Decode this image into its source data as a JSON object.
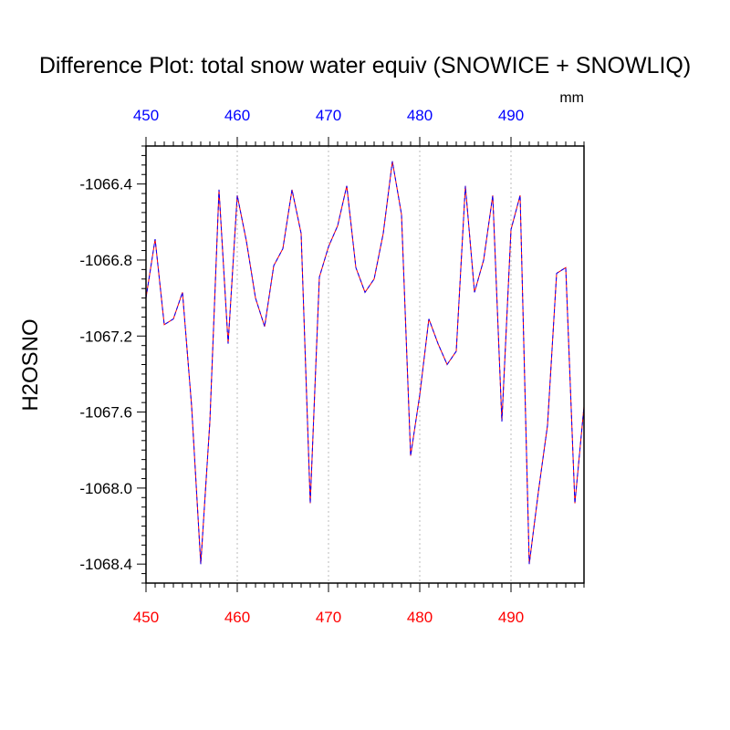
{
  "chart_data": {
    "type": "line",
    "title": "Difference Plot: total snow water equiv (SNOWICE + SNOWLIQ)",
    "units": "mm",
    "ylabel": "H2OSNO",
    "xlim": [
      450,
      498
    ],
    "ylim": [
      -1068.5,
      -1066.2
    ],
    "x_ticks": [
      450,
      460,
      470,
      480,
      490
    ],
    "y_ticks": [
      -1066.4,
      -1066.8,
      -1067.2,
      -1067.6,
      -1068.0,
      -1068.4
    ],
    "y_tick_labels": [
      "-1066.4",
      "-1066.8",
      "-1067.2",
      "-1067.6",
      "-1068.0",
      "-1068.4"
    ],
    "top_axis_color": "#0000ff",
    "bottom_axis_color": "#ff0000",
    "grid": "vertical dotted at major x ticks",
    "series": [
      {
        "color_a": "#ff0000",
        "color_b": "#0000ff",
        "x": [
          450,
          451,
          452,
          453,
          454,
          455,
          456,
          457,
          458,
          459,
          460,
          461,
          462,
          463,
          464,
          465,
          466,
          467,
          468,
          469,
          470,
          471,
          472,
          473,
          474,
          475,
          476,
          477,
          478,
          479,
          480,
          481,
          482,
          483,
          484,
          485,
          486,
          487,
          488,
          489,
          490,
          491,
          492,
          493,
          494,
          495,
          496,
          497,
          498
        ],
        "y": [
          -1067.0,
          -1066.69,
          -1067.14,
          -1067.11,
          -1066.97,
          -1067.57,
          -1068.4,
          -1067.65,
          -1066.43,
          -1067.24,
          -1066.46,
          -1066.7,
          -1067.0,
          -1067.15,
          -1066.83,
          -1066.74,
          -1066.43,
          -1066.66,
          -1068.08,
          -1066.89,
          -1066.73,
          -1066.62,
          -1066.41,
          -1066.84,
          -1066.97,
          -1066.9,
          -1066.66,
          -1066.28,
          -1066.56,
          -1067.83,
          -1067.51,
          -1067.11,
          -1067.24,
          -1067.35,
          -1067.28,
          -1066.41,
          -1066.97,
          -1066.8,
          -1066.46,
          -1067.65,
          -1066.64,
          -1066.46,
          -1068.4,
          -1068.02,
          -1067.67,
          -1066.87,
          -1066.84,
          -1068.08,
          -1067.57
        ]
      }
    ]
  }
}
